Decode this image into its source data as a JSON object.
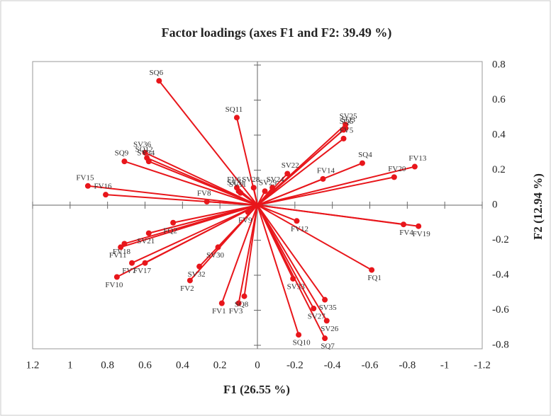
{
  "chart_data": {
    "type": "loadings",
    "title": "Factor loadings (axes F1 and F2: 39.49 %)",
    "x_label": "F1 (26.55 %)",
    "y_label": "F2 (12.94 %)",
    "color": "#e8161b",
    "xlim": [
      1.2,
      -1.2
    ],
    "ylim": [
      -0.82,
      0.82
    ],
    "xticks": [
      1.2,
      1,
      0.8,
      0.6,
      0.4,
      0.2,
      0,
      -0.2,
      -0.4,
      -0.6,
      -0.8,
      -1,
      -1.2
    ],
    "yticks": [
      0.8,
      0.6,
      0.4,
      0.2,
      0,
      -0.2,
      -0.4,
      -0.6,
      -0.8
    ],
    "points": [
      {
        "label": "SQ6",
        "x": 0.525,
        "y": 0.71
      },
      {
        "label": "SQ11",
        "x": 0.11,
        "y": 0.5
      },
      {
        "label": "SV25",
        "x": -0.47,
        "y": 0.46
      },
      {
        "label": "SQ3",
        "x": -0.47,
        "y": 0.44
      },
      {
        "label": "SQ5",
        "x": -0.46,
        "y": 0.43
      },
      {
        "label": "FV5",
        "x": -0.46,
        "y": 0.38
      },
      {
        "label": "SQ4",
        "x": -0.56,
        "y": 0.24
      },
      {
        "label": "FV13",
        "x": -0.84,
        "y": 0.22
      },
      {
        "label": "FV20",
        "x": -0.73,
        "y": 0.16
      },
      {
        "label": "SV22",
        "x": -0.16,
        "y": 0.18
      },
      {
        "label": "SV24",
        "x": -0.08,
        "y": 0.1
      },
      {
        "label": "SV29",
        "x": -0.04,
        "y": 0.08
      },
      {
        "label": "FV14",
        "x": -0.35,
        "y": 0.15
      },
      {
        "label": "SV36",
        "x": 0.6,
        "y": 0.3
      },
      {
        "label": "SQ12",
        "x": 0.59,
        "y": 0.27
      },
      {
        "label": "SV34",
        "x": 0.58,
        "y": 0.25
      },
      {
        "label": "SQ9",
        "x": 0.71,
        "y": 0.25
      },
      {
        "label": "FV15",
        "x": 0.905,
        "y": 0.11
      },
      {
        "label": "FV16",
        "x": 0.81,
        "y": 0.06
      },
      {
        "label": "FV8",
        "x": 0.27,
        "y": 0.02
      },
      {
        "label": "FV6",
        "x": 0.11,
        "y": 0.1
      },
      {
        "label": "SV28",
        "x": 0.02,
        "y": 0.1
      },
      {
        "label": "SV31",
        "x": 0.1,
        "y": 0.08
      },
      {
        "label": "SV11",
        "x": 0.09,
        "y": 0.07
      },
      {
        "label": "FV9",
        "x": 0.05,
        "y": -0.04
      },
      {
        "label": "FV12",
        "x": -0.21,
        "y": -0.09
      },
      {
        "label": "FV4",
        "x": -0.78,
        "y": -0.11
      },
      {
        "label": "FV19",
        "x": -0.86,
        "y": -0.12
      },
      {
        "label": "FQ2",
        "x": 0.45,
        "y": -0.1
      },
      {
        "label": "SV21",
        "x": 0.58,
        "y": -0.16
      },
      {
        "label": "SV30",
        "x": 0.21,
        "y": -0.24
      },
      {
        "label": "FV18",
        "x": 0.71,
        "y": -0.22
      },
      {
        "label": "FV11",
        "x": 0.73,
        "y": -0.24
      },
      {
        "label": "FV7",
        "x": 0.67,
        "y": -0.33
      },
      {
        "label": "FV17",
        "x": 0.6,
        "y": -0.33
      },
      {
        "label": "FV10",
        "x": 0.75,
        "y": -0.41
      },
      {
        "label": "SV32",
        "x": 0.31,
        "y": -0.35
      },
      {
        "label": "FV2",
        "x": 0.36,
        "y": -0.43
      },
      {
        "label": "FV3",
        "x": 0.1,
        "y": -0.56
      },
      {
        "label": "SQ8",
        "x": 0.07,
        "y": -0.52
      },
      {
        "label": "FV1",
        "x": 0.19,
        "y": -0.56
      },
      {
        "label": "SV33",
        "x": -0.19,
        "y": -0.42
      },
      {
        "label": "FQ1",
        "x": -0.61,
        "y": -0.37
      },
      {
        "label": "SV35",
        "x": -0.36,
        "y": -0.54
      },
      {
        "label": "SV27",
        "x": -0.3,
        "y": -0.59
      },
      {
        "label": "SV26",
        "x": -0.37,
        "y": -0.66
      },
      {
        "label": "SQ10",
        "x": -0.22,
        "y": -0.74
      },
      {
        "label": "SQ7",
        "x": -0.36,
        "y": -0.76
      }
    ]
  }
}
